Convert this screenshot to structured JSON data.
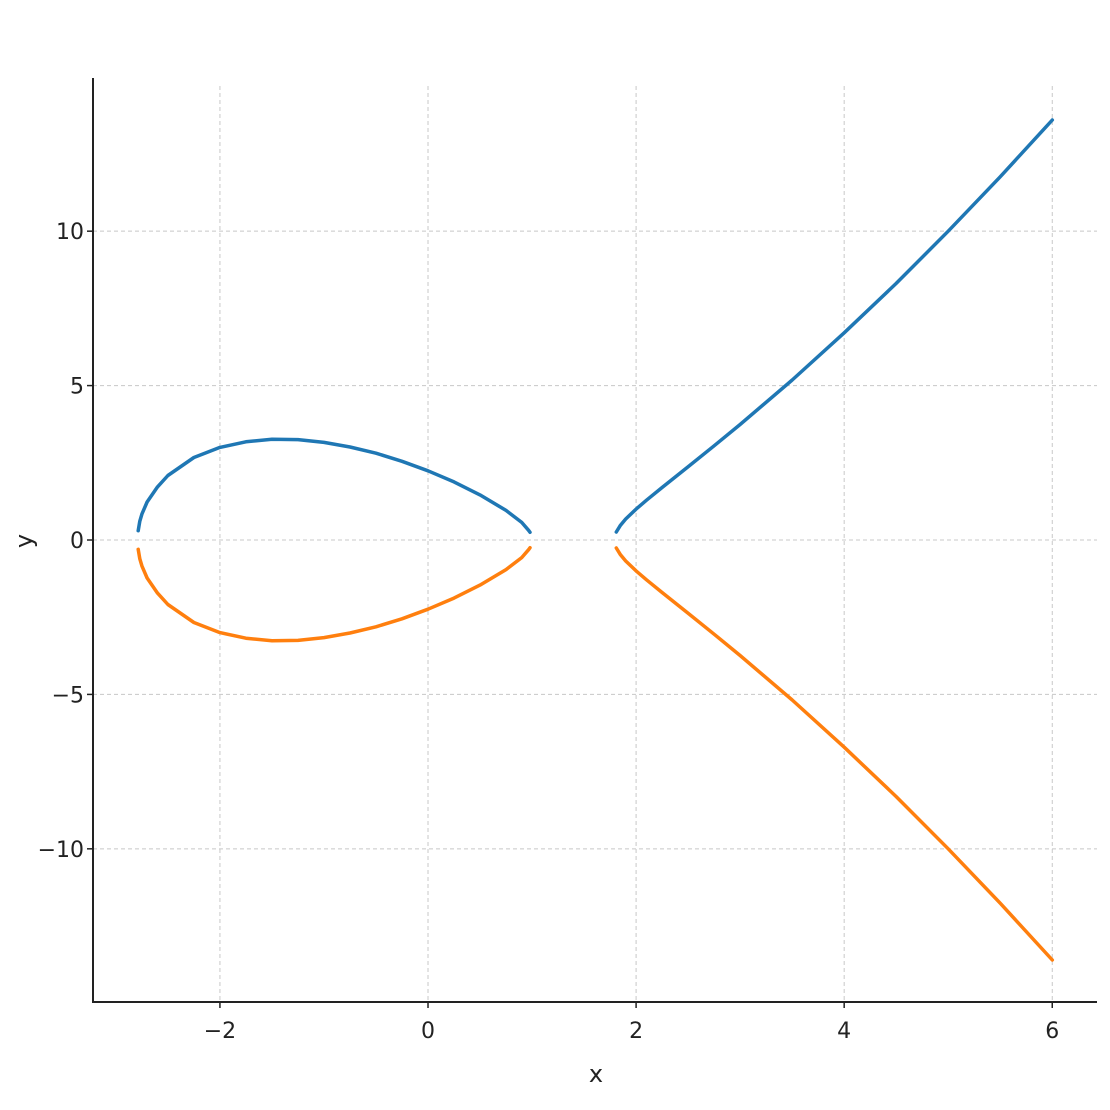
{
  "chart_data": {
    "type": "line",
    "title": "",
    "xlabel": "x",
    "ylabel": "y",
    "xlim": [
      -3.22,
      6.43
    ],
    "ylim": [
      -14.96,
      14.96
    ],
    "grid": true,
    "legend": "none",
    "xticks": [
      -2,
      0,
      2,
      4,
      6
    ],
    "xtick_labels": [
      "−2",
      "0",
      "2",
      "4",
      "6"
    ],
    "yticks": [
      -10,
      -5,
      0,
      5,
      10
    ],
    "ytick_labels": [
      "−10",
      "−5",
      "0",
      "5",
      "10"
    ],
    "series": [
      {
        "color": "#1f77b4",
        "segments": [
          {
            "x": [
              -2.786,
              -2.77,
              -2.75,
              -2.7,
              -2.6,
              -2.5,
              -2.25,
              -2,
              -1.75,
              -1.5,
              -1.25,
              -1,
              -0.75,
              -0.5,
              -0.25,
              0,
              0.25,
              0.5,
              0.75,
              0.9,
              0.97,
              0.98
            ],
            "y": [
              0.3,
              0.61,
              0.84,
              1.23,
              1.72,
              2.09,
              2.67,
              3.0,
              3.18,
              3.26,
              3.25,
              3.16,
              3.01,
              2.81,
              2.55,
              2.24,
              1.88,
              1.46,
              0.96,
              0.57,
              0.3,
              0.25
            ]
          },
          {
            "x": [
              1.81,
              1.85,
              1.9,
              2,
              2.1,
              2.25,
              2.5,
              2.75,
              3,
              3.5,
              4,
              4.5,
              5,
              5.5,
              6
            ],
            "y": [
              0.26,
              0.48,
              0.68,
              1.0,
              1.29,
              1.7,
              2.37,
              3.05,
              3.74,
              5.18,
              6.71,
              8.31,
              10.0,
              11.76,
              13.6
            ]
          }
        ]
      },
      {
        "color": "#ff7f0e",
        "segments": [
          {
            "x": [
              -2.786,
              -2.77,
              -2.75,
              -2.7,
              -2.6,
              -2.5,
              -2.25,
              -2,
              -1.75,
              -1.5,
              -1.25,
              -1,
              -0.75,
              -0.5,
              -0.25,
              0,
              0.25,
              0.5,
              0.75,
              0.9,
              0.97,
              0.98
            ],
            "y": [
              -0.3,
              -0.61,
              -0.84,
              -1.23,
              -1.72,
              -2.09,
              -2.67,
              -3.0,
              -3.18,
              -3.26,
              -3.25,
              -3.16,
              -3.01,
              -2.81,
              -2.55,
              -2.24,
              -1.88,
              -1.46,
              -0.96,
              -0.57,
              -0.3,
              -0.25
            ]
          },
          {
            "x": [
              1.81,
              1.85,
              1.9,
              2,
              2.1,
              2.25,
              2.5,
              2.75,
              3,
              3.5,
              4,
              4.5,
              5,
              5.5,
              6
            ],
            "y": [
              -0.26,
              -0.48,
              -0.68,
              -1.0,
              -1.29,
              -1.7,
              -2.37,
              -3.05,
              -3.74,
              -5.18,
              -6.71,
              -8.31,
              -10.0,
              -11.76,
              -13.6
            ]
          }
        ]
      }
    ]
  }
}
